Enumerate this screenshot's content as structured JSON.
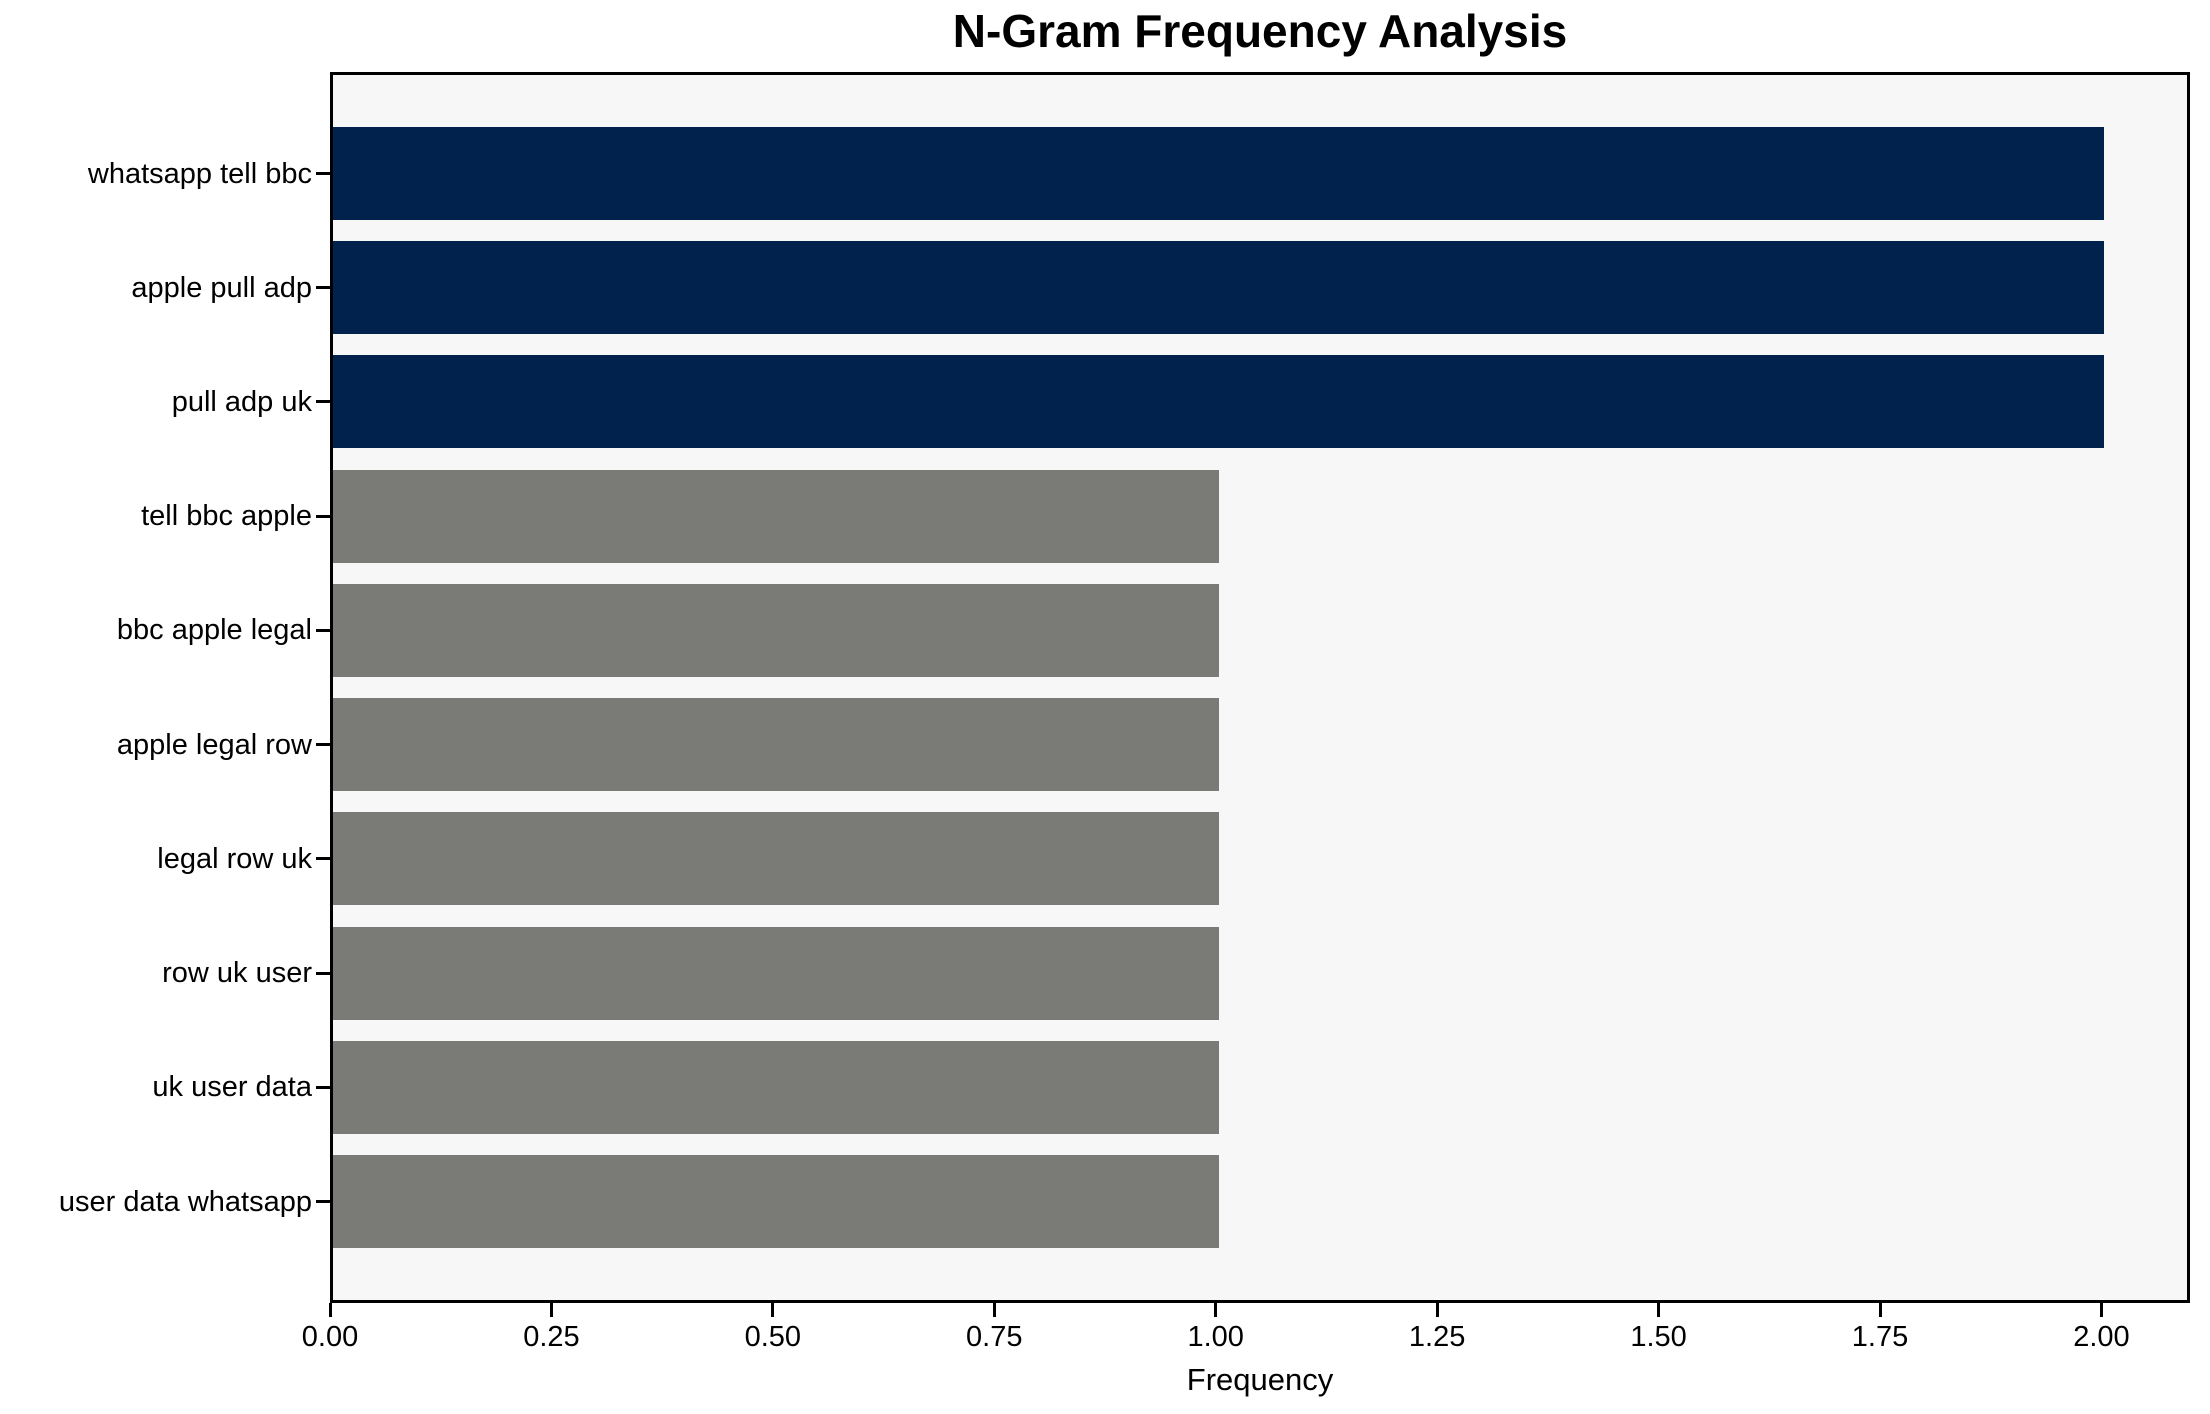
{
  "chart_data": {
    "type": "bar",
    "orientation": "horizontal",
    "title": "N-Gram Frequency Analysis",
    "xlabel": "Frequency",
    "ylabel": "",
    "categories": [
      "whatsapp tell bbc",
      "apple pull adp",
      "pull adp uk",
      "tell bbc apple",
      "bbc apple legal",
      "apple legal row",
      "legal row uk",
      "row uk user",
      "uk user data",
      "user data whatsapp"
    ],
    "values": [
      2,
      2,
      2,
      1,
      1,
      1,
      1,
      1,
      1,
      1
    ],
    "bar_colors": [
      "#00224d",
      "#00224d",
      "#00224d",
      "#7a7b77",
      "#7a7b77",
      "#7a7b77",
      "#7a7b77",
      "#7a7b77",
      "#7a7b77",
      "#7a7b77"
    ],
    "x_ticks": [
      "0.00",
      "0.25",
      "0.50",
      "0.75",
      "1.00",
      "1.25",
      "1.50",
      "1.75",
      "2.00"
    ],
    "x_tick_values": [
      0,
      0.25,
      0.5,
      0.75,
      1.0,
      1.25,
      1.5,
      1.75,
      2.0
    ],
    "xlim": [
      0,
      2.1
    ],
    "grid": false,
    "legend": "none",
    "colors": {
      "highlight_bar": "#00224d",
      "normal_bar": "#7a7b77",
      "plot_background": "#f7f7f7",
      "figure_background": "#ffffff",
      "spine": "#000000",
      "text": "#000000"
    }
  }
}
